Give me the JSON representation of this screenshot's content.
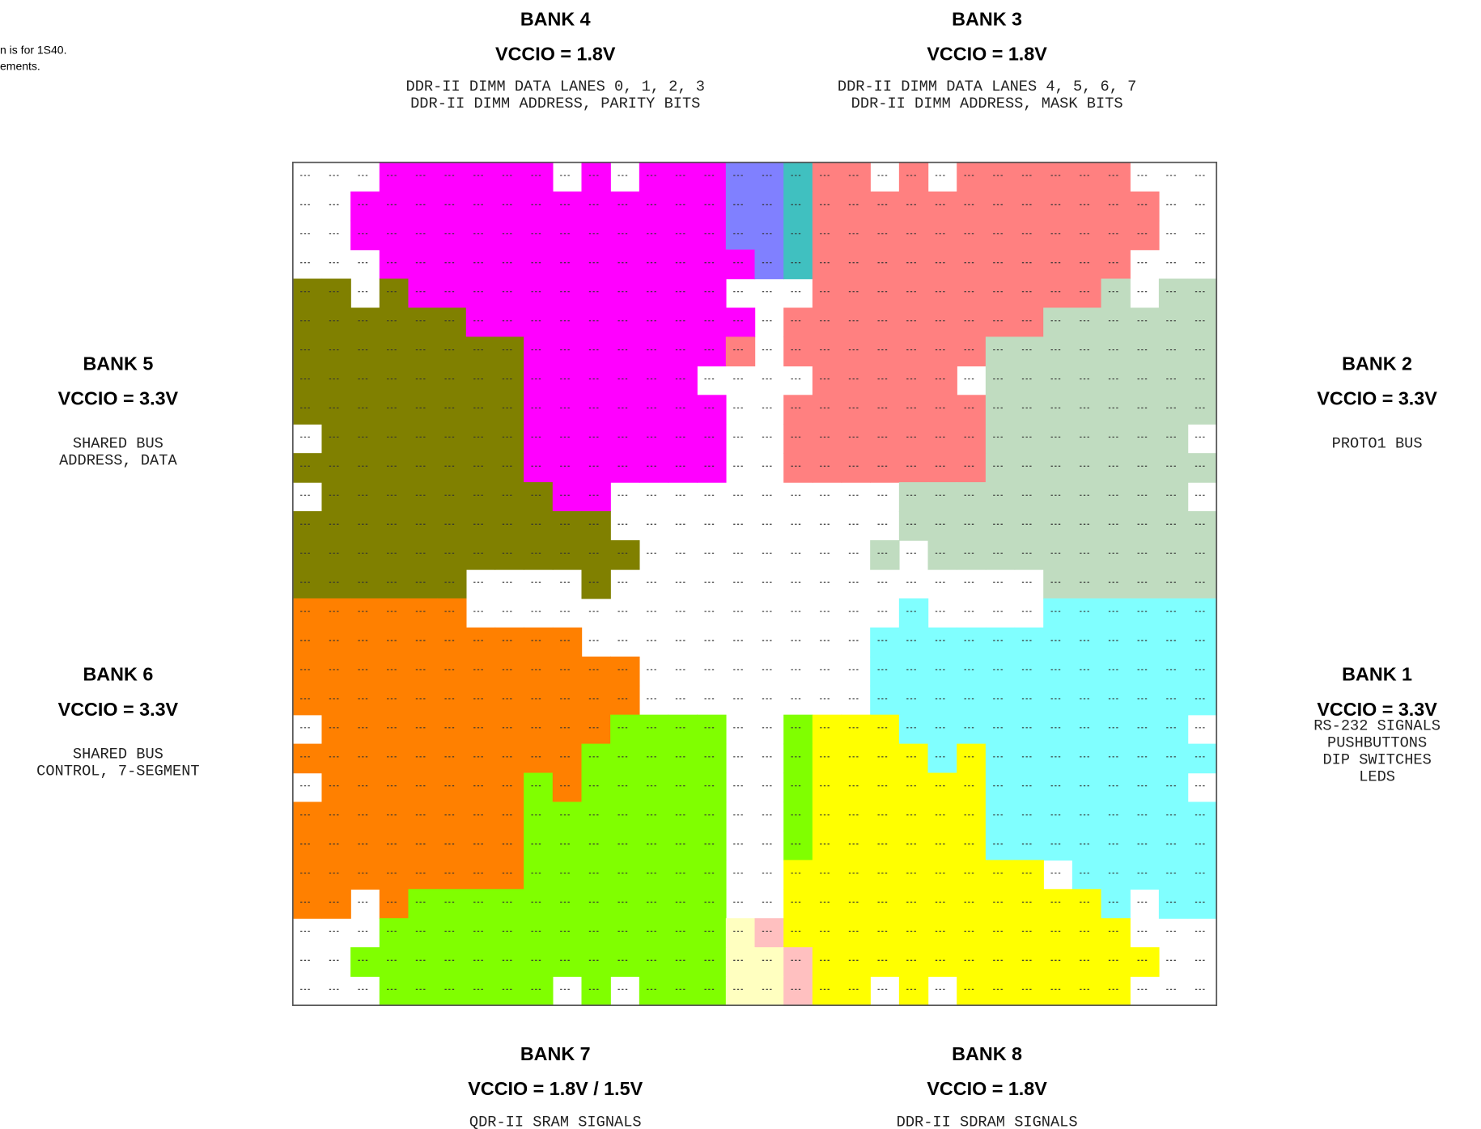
{
  "notes": [
    "n is for 1S40.",
    "ements."
  ],
  "banks": [
    {
      "name": "BANK 4",
      "vccio": "VCCIO = 1.8V",
      "description": [
        "DDR-II DIMM DATA LANES 0, 1, 2, 3",
        "DDR-II DIMM ADDRESS, PARITY BITS"
      ]
    },
    {
      "name": "BANK 3",
      "vccio": "VCCIO = 1.8V",
      "description": [
        "DDR-II DIMM DATA LANES 4, 5, 6, 7",
        "DDR-II DIMM ADDRESS, MASK BITS"
      ]
    },
    {
      "name": "BANK 5",
      "vccio": "VCCIO = 3.3V",
      "description": [
        "SHARED BUS",
        "ADDRESS, DATA"
      ]
    },
    {
      "name": "BANK 2",
      "vccio": "VCCIO = 3.3V",
      "description": [
        "PROTO1 BUS"
      ]
    },
    {
      "name": "BANK 6",
      "vccio": "VCCIO = 3.3V",
      "description": [
        "SHARED BUS",
        "CONTROL, 7-SEGMENT"
      ]
    },
    {
      "name": "BANK 1",
      "vccio": "VCCIO = 3.3V",
      "description": [
        "RS-232 SIGNALS",
        "PUSHBUTTONS",
        "DIP SWITCHES",
        "LEDS"
      ]
    },
    {
      "name": "BANK 7",
      "vccio": "VCCIO = 1.8V / 1.5V",
      "description": [
        "QDR-II SRAM SIGNALS"
      ]
    },
    {
      "name": "BANK 8",
      "vccio": "VCCIO = 1.8V",
      "description": [
        "DDR-II SDRAM SIGNALS"
      ]
    }
  ]
}
